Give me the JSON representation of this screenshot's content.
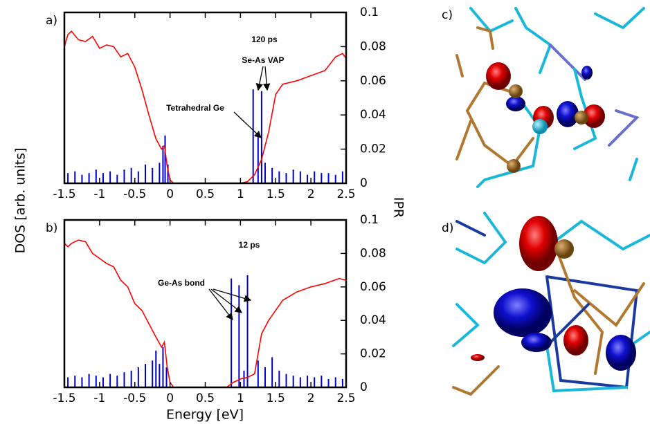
{
  "labels": {
    "ylabel": "DOS [arb. units]",
    "y2label": "IPR",
    "xlabel": "Energy [eV]"
  },
  "chart_data": [
    {
      "type": "line",
      "panel": "a)",
      "annotations": [
        "120 ps",
        "Se-As VAP",
        "Tetrahedral Ge"
      ],
      "xlim": [
        -1.5,
        2.5
      ],
      "xticks": [
        -1.5,
        -1,
        -0.5,
        0,
        0.5,
        1,
        1.5,
        2,
        2.5
      ],
      "ylim": [
        0,
        1
      ],
      "y2lim": [
        0,
        0.1
      ],
      "y2ticks": [
        0,
        0.02,
        0.04,
        0.06,
        0.08,
        0.1
      ],
      "series": [
        {
          "type": "line",
          "color": "#ff0000",
          "x": [
            -1.5,
            -1.45,
            -1.4,
            -1.3,
            -1.2,
            -1.1,
            -1.0,
            -0.9,
            -0.8,
            -0.7,
            -0.6,
            -0.5,
            -0.4,
            -0.3,
            -0.2,
            -0.12,
            -0.08,
            -0.04,
            0,
            0.05,
            0.5,
            1.0,
            1.1,
            1.2,
            1.3,
            1.4,
            1.5,
            1.6,
            1.8,
            2.0,
            2.2,
            2.35,
            2.45,
            2.5
          ],
          "values": [
            0.8,
            0.87,
            0.89,
            0.84,
            0.83,
            0.86,
            0.79,
            0.81,
            0.8,
            0.74,
            0.76,
            0.68,
            0.55,
            0.4,
            0.26,
            0.2,
            0.22,
            0.1,
            0.02,
            0,
            0,
            0,
            0.01,
            0.05,
            0.14,
            0.3,
            0.52,
            0.58,
            0.6,
            0.63,
            0.66,
            0.74,
            0.76,
            0.73
          ]
        },
        {
          "type": "bar",
          "axis": "y2",
          "color": "#0000cc",
          "x": [
            -1.45,
            -1.35,
            -1.25,
            -1.15,
            -1.05,
            -0.95,
            -0.85,
            -0.75,
            -0.65,
            -0.55,
            -0.45,
            -0.35,
            -0.25,
            -0.15,
            -0.1,
            -0.07,
            -0.03,
            1.18,
            1.25,
            1.3,
            1.35,
            1.45,
            1.55,
            1.65,
            1.75,
            1.85,
            1.95,
            2.05,
            2.15,
            2.25,
            2.35,
            2.45
          ],
          "values": [
            0.006,
            0.007,
            0.005,
            0.006,
            0.008,
            0.006,
            0.007,
            0.005,
            0.008,
            0.009,
            0.007,
            0.011,
            0.009,
            0.012,
            0.022,
            0.028,
            0.011,
            0.055,
            0.027,
            0.054,
            0.012,
            0.009,
            0.007,
            0.006,
            0.008,
            0.007,
            0.005,
            0.007,
            0.006,
            0.006,
            0.005,
            0.007
          ]
        }
      ]
    },
    {
      "type": "line",
      "panel": "b)",
      "annotations": [
        "12 ps",
        "Ge-As bond"
      ],
      "xlim": [
        -1.5,
        2.5
      ],
      "xticks": [
        -1.5,
        -1,
        -0.5,
        0,
        0.5,
        1,
        1.5,
        2,
        2.5
      ],
      "ylim": [
        0,
        1
      ],
      "y2lim": [
        0,
        0.1
      ],
      "y2ticks": [
        0,
        0.02,
        0.04,
        0.06,
        0.08,
        0.1
      ],
      "series": [
        {
          "type": "line",
          "color": "#ff0000",
          "x": [
            -1.5,
            -1.45,
            -1.4,
            -1.3,
            -1.2,
            -1.1,
            -1.0,
            -0.9,
            -0.8,
            -0.7,
            -0.6,
            -0.5,
            -0.4,
            -0.3,
            -0.2,
            -0.12,
            -0.08,
            -0.04,
            0,
            0.05,
            0.5,
            0.8,
            0.9,
            1.0,
            1.1,
            1.2,
            1.25,
            1.3,
            1.4,
            1.6,
            1.8,
            2.0,
            2.2,
            2.4,
            2.5
          ],
          "values": [
            0.86,
            0.84,
            0.86,
            0.88,
            0.87,
            0.8,
            0.77,
            0.74,
            0.72,
            0.64,
            0.6,
            0.5,
            0.46,
            0.38,
            0.3,
            0.24,
            0.27,
            0.12,
            0.03,
            0,
            0,
            0,
            0.03,
            0.05,
            0.06,
            0.08,
            0.2,
            0.32,
            0.4,
            0.52,
            0.57,
            0.6,
            0.62,
            0.65,
            0.64
          ]
        },
        {
          "type": "bar",
          "axis": "y2",
          "color": "#0000cc",
          "x": [
            -1.45,
            -1.35,
            -1.25,
            -1.15,
            -1.05,
            -0.95,
            -0.85,
            -0.75,
            -0.65,
            -0.55,
            -0.45,
            -0.35,
            -0.25,
            -0.2,
            -0.15,
            -0.1,
            -0.05,
            0.87,
            0.98,
            1.05,
            1.1,
            1.25,
            1.35,
            1.45,
            1.55,
            1.65,
            1.75,
            1.85,
            1.95,
            2.05,
            2.15,
            2.25,
            2.35,
            2.45
          ],
          "values": [
            0.006,
            0.007,
            0.006,
            0.008,
            0.007,
            0.006,
            0.008,
            0.007,
            0.009,
            0.01,
            0.012,
            0.014,
            0.016,
            0.022,
            0.014,
            0.024,
            0.012,
            0.065,
            0.061,
            0.01,
            0.067,
            0.016,
            0.012,
            0.018,
            0.01,
            0.008,
            0.007,
            0.006,
            0.007,
            0.006,
            0.007,
            0.005,
            0.006,
            0.005
          ]
        }
      ]
    }
  ],
  "images": [
    {
      "label": "c)"
    },
    {
      "label": "d)"
    }
  ]
}
